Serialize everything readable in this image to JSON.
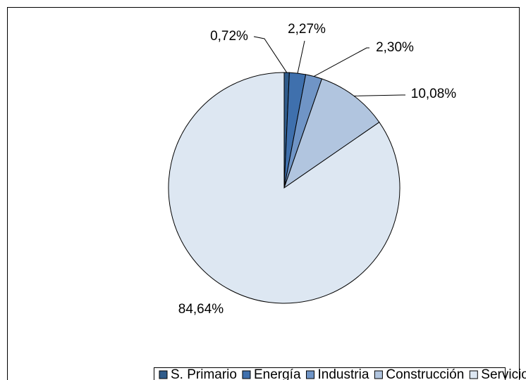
{
  "chart_data": {
    "type": "pie",
    "categories": [
      "S. Primario",
      "Energía",
      "Industria",
      "Construcción",
      "Servicios"
    ],
    "values": [
      0.72,
      2.27,
      2.3,
      10.08,
      84.64
    ],
    "value_labels": [
      "0,72%",
      "2,27%",
      "2,30%",
      "10,08%",
      "84,64%"
    ],
    "colors": [
      "#2f5b8a",
      "#3f70ad",
      "#7095c6",
      "#b1c5df",
      "#dde7f2"
    ],
    "legend": "bottom"
  }
}
